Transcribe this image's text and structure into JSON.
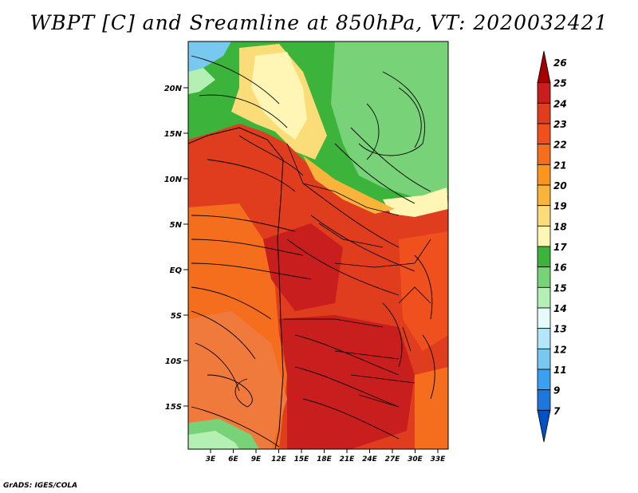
{
  "title": "WBPT [C] and Sreamline at 850hPa, VT: 2020032421",
  "footer": "GrADS: IGES/COLA",
  "map": {
    "projection": "latlon",
    "lon_range": [
      0,
      35
    ],
    "lat_range": [
      -20,
      25
    ],
    "lat_labels": [
      "20N",
      "15N",
      "10N",
      "5N",
      "EQ",
      "5S",
      "10S",
      "15S"
    ],
    "lon_labels": [
      "3E",
      "6E",
      "9E",
      "12E",
      "15E",
      "18E",
      "21E",
      "24E",
      "27E",
      "30E",
      "33E"
    ],
    "variable": "Wet-bulb potential temperature",
    "units": "C",
    "level": "850hPa",
    "valid_time": "2020032421"
  },
  "colorbar": {
    "levels": [
      "26",
      "25",
      "24",
      "23",
      "22",
      "21",
      "20",
      "19",
      "18",
      "17",
      "16",
      "15",
      "14",
      "13",
      "12",
      "11",
      "9",
      "7"
    ],
    "colors": [
      "#a50000",
      "#c81e1e",
      "#e03c1e",
      "#f0501e",
      "#f56e1e",
      "#fa961e",
      "#fab43c",
      "#fadc78",
      "#fff5b4",
      "#3cb43c",
      "#78d278",
      "#b4f0b4",
      "#e6fafa",
      "#b4e6fa",
      "#78c8f0",
      "#3ca0f0",
      "#1e78dc",
      "#0050c8"
    ]
  }
}
